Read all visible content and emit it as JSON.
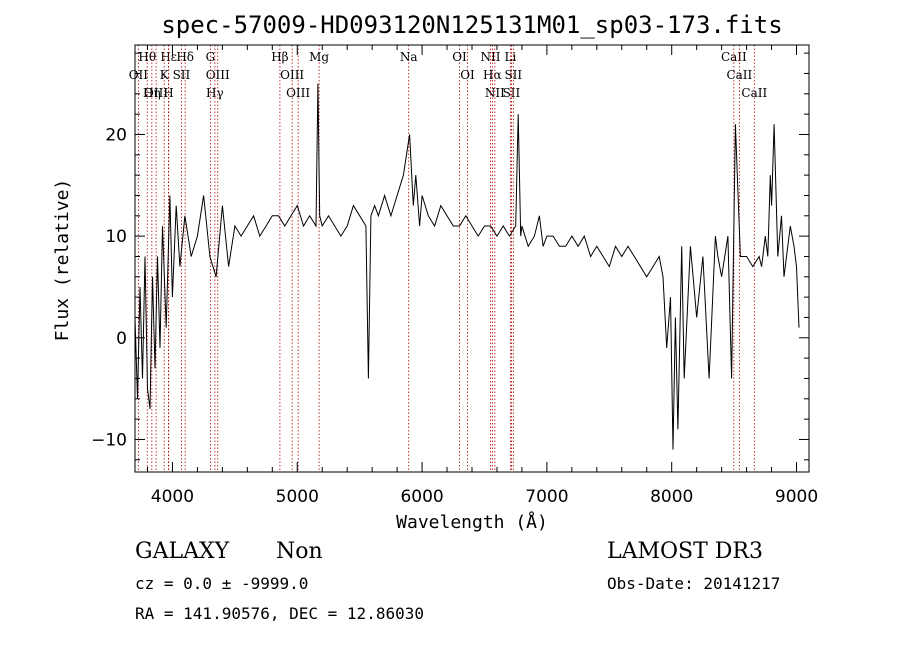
{
  "chart_data": {
    "type": "line",
    "title": "spec-57009-HD093120N125131M01_sp03-173.fits",
    "xlabel": "Wavelength (Å)",
    "ylabel": "Flux (relative)",
    "xlim": [
      3700,
      9100
    ],
    "ylim": [
      -13.2,
      28.8
    ],
    "xticks": [
      4000,
      5000,
      6000,
      7000,
      8000,
      9000
    ],
    "yticks": [
      -10,
      0,
      10,
      20
    ],
    "grid": false,
    "series": [
      {
        "name": "spectrum",
        "x": [
          3700,
          3720,
          3740,
          3760,
          3780,
          3800,
          3820,
          3840,
          3860,
          3880,
          3900,
          3920,
          3950,
          3980,
          4000,
          4030,
          4060,
          4100,
          4150,
          4200,
          4250,
          4300,
          4350,
          4400,
          4450,
          4500,
          4550,
          4600,
          4650,
          4700,
          4750,
          4800,
          4850,
          4900,
          4950,
          5000,
          5050,
          5100,
          5150,
          5165,
          5180,
          5200,
          5250,
          5300,
          5350,
          5400,
          5450,
          5500,
          5550,
          5570,
          5590,
          5620,
          5650,
          5700,
          5750,
          5800,
          5850,
          5900,
          5930,
          5950,
          5980,
          6000,
          6050,
          6100,
          6150,
          6200,
          6250,
          6300,
          6350,
          6400,
          6450,
          6500,
          6550,
          6600,
          6650,
          6700,
          6750,
          6770,
          6790,
          6800,
          6850,
          6900,
          6940,
          6970,
          7000,
          7050,
          7100,
          7150,
          7200,
          7250,
          7300,
          7350,
          7400,
          7450,
          7500,
          7550,
          7600,
          7650,
          7700,
          7750,
          7800,
          7850,
          7900,
          7930,
          7960,
          7990,
          8010,
          8030,
          8050,
          8080,
          8100,
          8150,
          8200,
          8250,
          8300,
          8350,
          8370,
          8400,
          8450,
          8480,
          8510,
          8550,
          8600,
          8650,
          8700,
          8720,
          8750,
          8770,
          8790,
          8800,
          8820,
          8850,
          8880,
          8900,
          8950,
          8980,
          9000,
          9020
        ],
        "values": [
          2,
          -6,
          5,
          -4,
          8,
          -5,
          -7,
          6,
          -3,
          8,
          -1,
          11,
          1,
          14,
          4,
          13,
          7,
          12,
          8,
          10,
          14,
          8,
          6,
          13,
          7,
          11,
          10,
          11,
          12,
          10,
          11,
          12,
          12,
          11,
          12,
          13,
          11,
          12,
          11,
          25,
          12,
          11,
          12,
          11,
          10,
          11,
          13,
          12,
          11,
          -4,
          12,
          13,
          12,
          14,
          12,
          14,
          16,
          20,
          13,
          16,
          11,
          14,
          12,
          11,
          13,
          12,
          11,
          11,
          12,
          11,
          10,
          11,
          11,
          10,
          11,
          10,
          11,
          22,
          10,
          11,
          9,
          10,
          12,
          9,
          10,
          10,
          9,
          9,
          10,
          9,
          10,
          8,
          9,
          8,
          7,
          9,
          8,
          9,
          8,
          7,
          6,
          7,
          8,
          6,
          -1,
          4,
          -11,
          2,
          -9,
          9,
          -4,
          9,
          2,
          8,
          -4,
          10,
          8,
          6,
          10,
          -4,
          21,
          8,
          8,
          7,
          8,
          7,
          10,
          8,
          16,
          13,
          21,
          8,
          12,
          6,
          11,
          9,
          7,
          1
        ]
      }
    ],
    "lines": [
      {
        "label": "Hθ",
        "x": 3798
      },
      {
        "label": "OII",
        "x": 3727
      },
      {
        "label": "OIII",
        "x": 3869
      },
      {
        "label": "Hη",
        "x": 3835
      },
      {
        "label": "Hε",
        "x": 3970
      },
      {
        "label": "K",
        "x": 3934
      },
      {
        "label": "H",
        "x": 3968
      },
      {
        "label": "SII",
        "x": 4072
      },
      {
        "label": "Hδ",
        "x": 4102
      },
      {
        "label": "G",
        "x": 4304
      },
      {
        "label": "OIII",
        "x": 4363
      },
      {
        "label": "Hγ",
        "x": 4340
      },
      {
        "label": "Hβ",
        "x": 4861
      },
      {
        "label": "OIII",
        "x": 4959
      },
      {
        "label": "OIII",
        "x": 5007
      },
      {
        "label": "Mg",
        "x": 5175
      },
      {
        "label": "Na",
        "x": 5893
      },
      {
        "label": "OI",
        "x": 6300
      },
      {
        "label": "OI",
        "x": 6364
      },
      {
        "label": "NII",
        "x": 6548
      },
      {
        "label": "Hα",
        "x": 6563
      },
      {
        "label": "NII",
        "x": 6583
      },
      {
        "label": "SII",
        "x": 6716
      },
      {
        "label": "SII",
        "x": 6731
      },
      {
        "label": "Li",
        "x": 6708
      },
      {
        "label": "CaII",
        "x": 8498
      },
      {
        "label": "CaII",
        "x": 8542
      },
      {
        "label": "CaII",
        "x": 8662
      }
    ]
  },
  "info": {
    "class": "GALAXY",
    "subclass": "Non",
    "survey": "LAMOST DR3",
    "cz": "cz = 0.0 ± -9999.0",
    "obs_date": "Obs-Date: 20141217",
    "coords": "RA = 141.90576, DEC =  12.86030"
  }
}
